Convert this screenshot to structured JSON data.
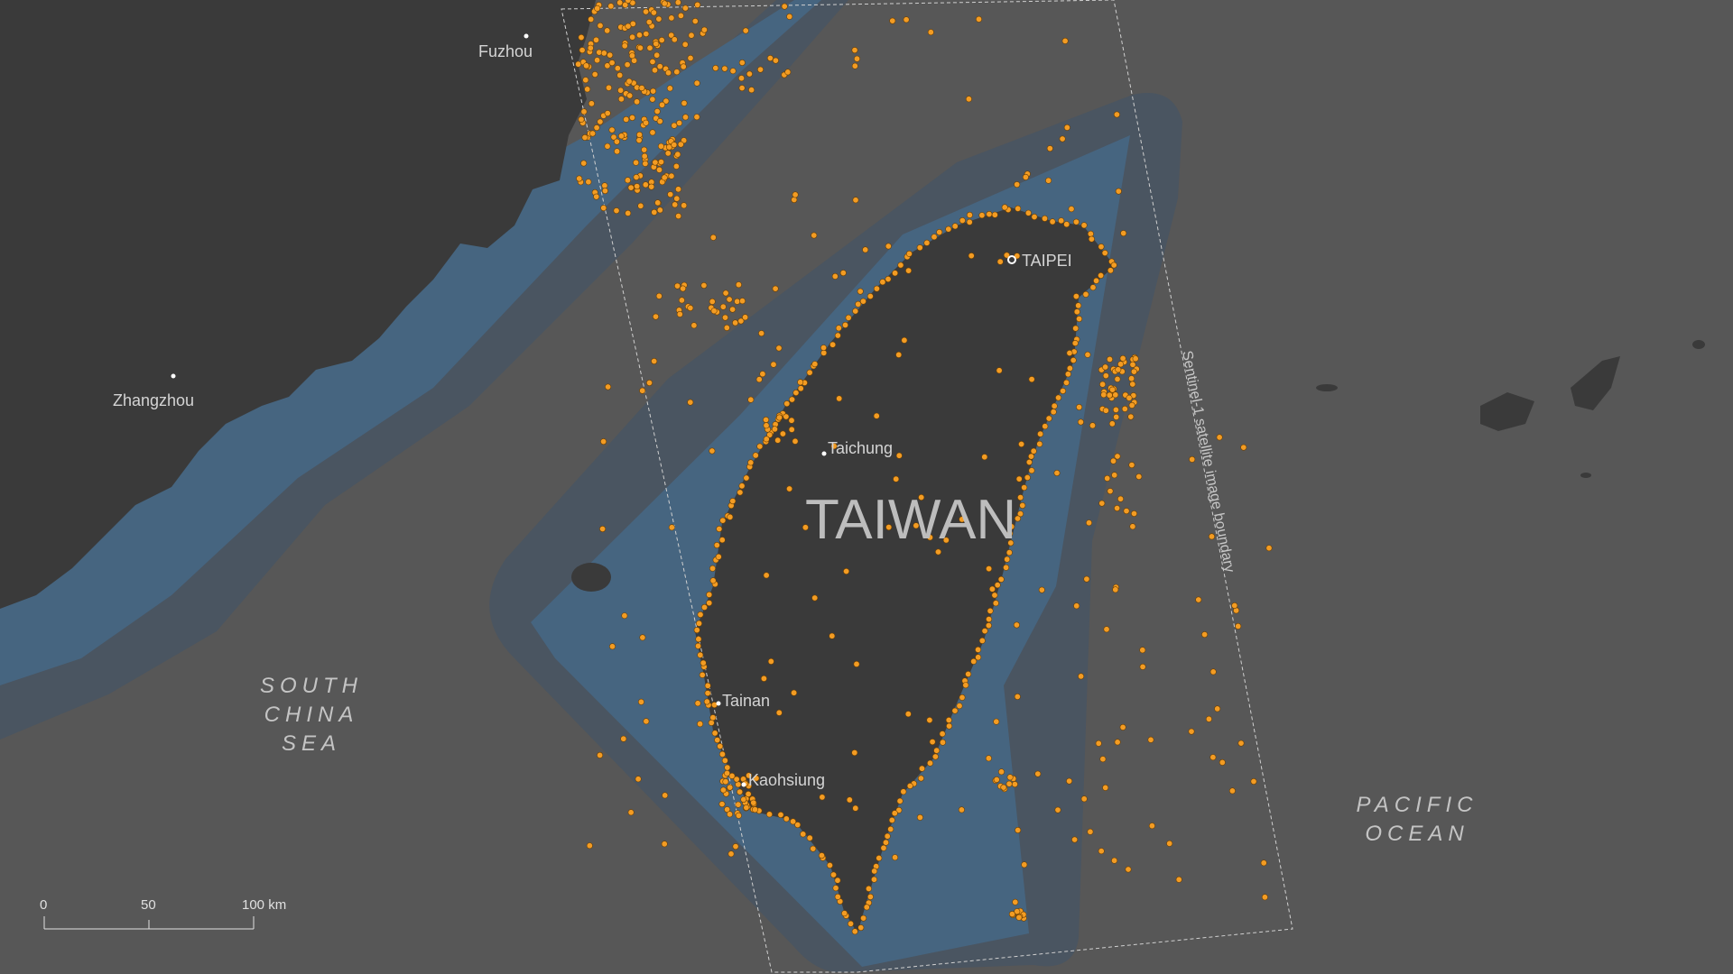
{
  "colors": {
    "background_sea": "#575757",
    "land": "#3a3a3a",
    "outer_zone": "#4a5561",
    "inner_zone": "#466580",
    "vessel_dot": "#f39c23",
    "boundary_line": "#d0d0d0"
  },
  "map": {
    "country_label": "TAIWAN",
    "cities": [
      {
        "name": "Fuzhou"
      },
      {
        "name": "Zhangzhou"
      },
      {
        "name": "TAIPEI"
      },
      {
        "name": "Taichung"
      },
      {
        "name": "Tainan"
      },
      {
        "name": "Kaohsiung"
      }
    ],
    "seas": {
      "south_china_sea": [
        "SOUTH",
        "CHINA",
        "SEA"
      ],
      "pacific_ocean": [
        "PACIFIC",
        "OCEAN"
      ]
    },
    "boundary_label": "Sentinel-1 satellite image boundary",
    "scale_bar": {
      "ticks": [
        "0",
        "50",
        "100 km"
      ],
      "values_km": [
        0,
        50,
        100
      ]
    },
    "icons": {
      "city_marker": "dot-icon",
      "capital_marker": "ring-dot-icon",
      "vessel_marker": "dot-icon"
    }
  }
}
